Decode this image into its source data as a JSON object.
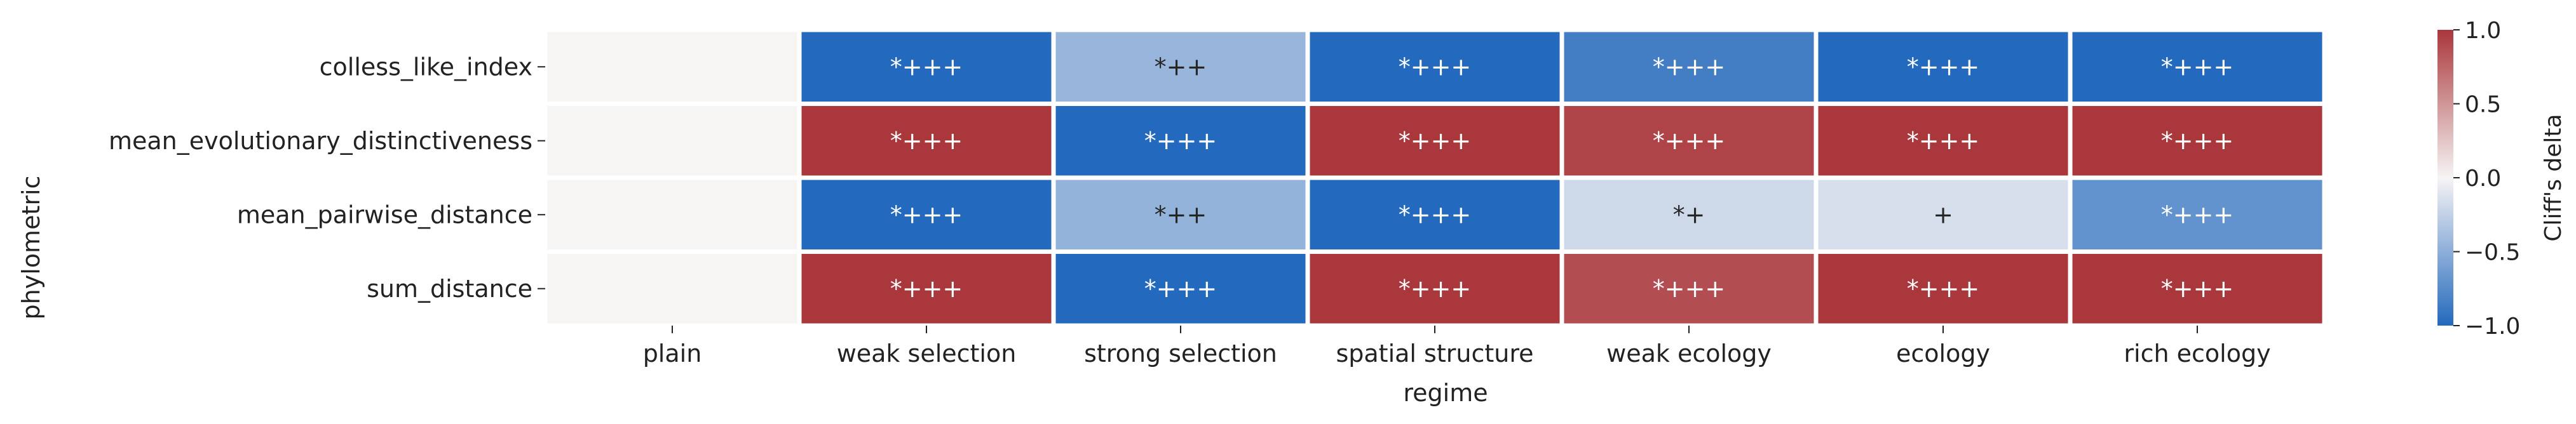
{
  "chart_data": {
    "type": "heatmap",
    "title": "",
    "xlabel": "regime",
    "ylabel": "phylometric",
    "x_categories": [
      "plain",
      "weak selection",
      "strong selection",
      "spatial structure",
      "weak ecology",
      "ecology",
      "rich ecology"
    ],
    "y_categories": [
      "colless_like_index",
      "mean_evolutionary_distinctiveness",
      "mean_pairwise_distance",
      "sum_distance"
    ],
    "values": [
      [
        0.0,
        -1.0,
        -0.45,
        -1.0,
        -0.85,
        -1.0,
        -1.0
      ],
      [
        0.0,
        1.0,
        -1.0,
        1.0,
        0.93,
        1.0,
        1.0
      ],
      [
        0.0,
        -1.0,
        -0.47,
        -1.0,
        -0.2,
        -0.15,
        -0.7
      ],
      [
        0.0,
        1.0,
        -1.0,
        1.0,
        0.88,
        1.0,
        1.0
      ]
    ],
    "annotations": [
      [
        "",
        "*+++",
        "*++",
        "*+++",
        "*+++",
        "*+++",
        "*+++"
      ],
      [
        "",
        "*+++",
        "*+++",
        "*+++",
        "*+++",
        "*+++",
        "*+++"
      ],
      [
        "",
        "*+++",
        "*++",
        "*+++",
        "*+",
        "+",
        "*+++"
      ],
      [
        "",
        "*+++",
        "*+++",
        "*+++",
        "*+++",
        "*+++",
        "*+++"
      ]
    ],
    "colorbar": {
      "label": "Cliff's delta",
      "range": [
        -1.0,
        1.0
      ],
      "ticks": [
        "1.0",
        "0.5",
        "0.0",
        "−0.5",
        "−1.0"
      ],
      "tick_values": [
        1.0,
        0.5,
        0.0,
        -0.5,
        -1.0
      ],
      "colormap": "vlag",
      "low_color": "#2369bd",
      "mid_color": "#f7f4f4",
      "high_color": "#a9373b"
    },
    "grid": false,
    "legend": "colorbar-right"
  }
}
